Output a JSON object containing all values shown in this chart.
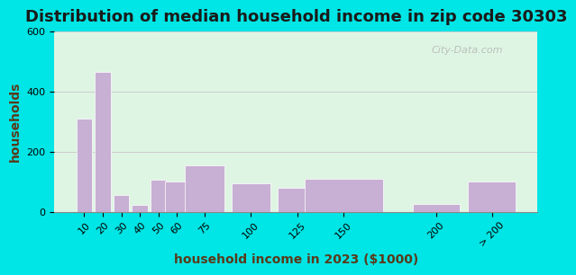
{
  "title": "Distribution of median household income in zip code 30303",
  "xlabel": "household income in 2023 ($1000)",
  "ylabel": "households",
  "bar_labels": [
    "10",
    "20",
    "30",
    "40",
    "50",
    "60",
    "75",
    "100",
    "125",
    "150",
    "200",
    "> 200"
  ],
  "bar_values": [
    310,
    465,
    55,
    22,
    108,
    100,
    155,
    95,
    80,
    110,
    25,
    100
  ],
  "bar_color": "#c8afd4",
  "bar_edge_color": "#c8afd4",
  "ylim": [
    0,
    600
  ],
  "yticks": [
    0,
    200,
    400,
    600
  ],
  "background_outer": "#00e5e5",
  "background_inner_top": "#e8f5e0",
  "background_inner_bottom": "#d0f5f0",
  "grid_color": "#cccccc",
  "title_fontsize": 13,
  "axis_label_fontsize": 10,
  "tick_fontsize": 8,
  "watermark_text": "City-Data.com"
}
